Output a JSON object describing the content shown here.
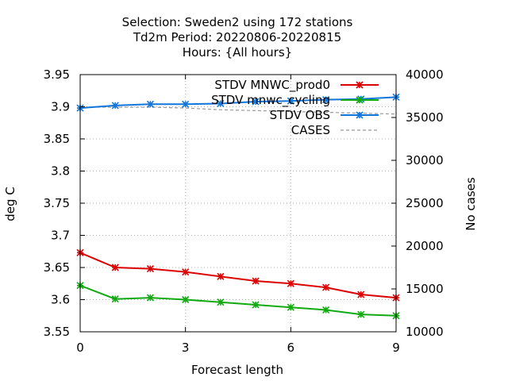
{
  "chart_data": {
    "type": "line",
    "title_lines": [
      "Selection: Sweden2 using   172 stations",
      "Td2m   Period: 20220806-20220815",
      "Hours: {All hours}"
    ],
    "xlabel": "Forecast length",
    "ylabel": "deg C",
    "y2label": "No cases",
    "xlim": [
      0,
      9
    ],
    "ylim": [
      3.55,
      3.95
    ],
    "y2lim": [
      10000,
      40000
    ],
    "xticks": [
      0,
      3,
      6,
      9
    ],
    "yticks": [
      3.55,
      3.6,
      3.65,
      3.7,
      3.75,
      3.8,
      3.85,
      3.9,
      3.95
    ],
    "y2ticks": [
      10000,
      15000,
      20000,
      25000,
      30000,
      35000,
      40000
    ],
    "grid": true,
    "legend_position": "top-right",
    "x": [
      0,
      1,
      2,
      3,
      4,
      5,
      6,
      7,
      8,
      9
    ],
    "series": [
      {
        "name": "STDV MNWC_prod0",
        "color": "#dd0000",
        "axis": "y",
        "style": "solid",
        "values": [
          3.673,
          3.65,
          3.648,
          3.643,
          3.636,
          3.629,
          3.625,
          3.619,
          3.608,
          3.603
        ]
      },
      {
        "name": "STDV mnwc_cycling",
        "color": "#11aa11",
        "axis": "y",
        "style": "solid",
        "values": [
          3.622,
          3.601,
          3.603,
          3.6,
          3.596,
          3.592,
          3.588,
          3.584,
          3.577,
          3.575
        ]
      },
      {
        "name": "STDV OBS",
        "color": "#1177dd",
        "axis": "y",
        "style": "solid",
        "values": [
          3.898,
          3.902,
          3.904,
          3.904,
          3.905,
          3.908,
          3.909,
          3.911,
          3.912,
          3.915
        ]
      },
      {
        "name": "CASES",
        "color": "#999999",
        "axis": "y2",
        "style": "dashed",
        "values": [
          36200,
          36200,
          36200,
          36100,
          35900,
          35800,
          35700,
          35600,
          35500,
          35400
        ]
      }
    ]
  }
}
